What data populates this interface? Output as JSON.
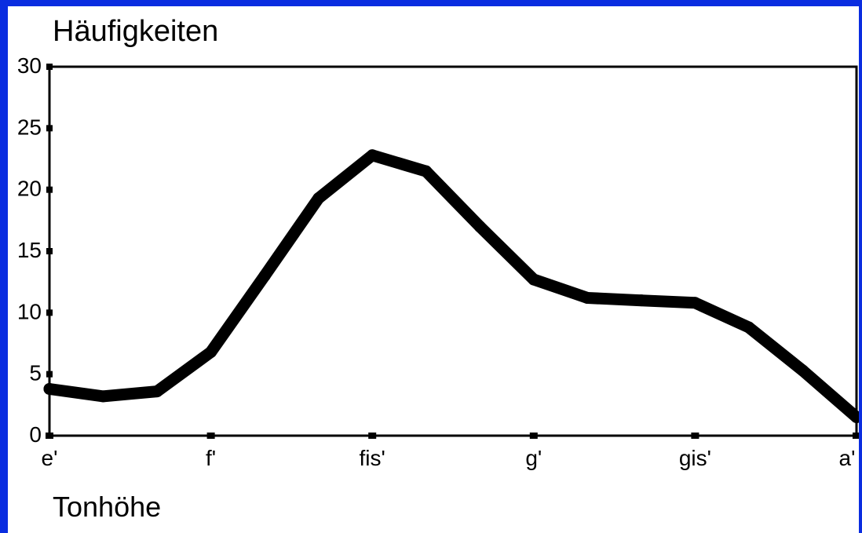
{
  "chart_data": {
    "type": "line",
    "ylabel": "Häufigkeiten",
    "xlabel": "Tonhöhe",
    "ylim": [
      0,
      30
    ],
    "yticks": [
      0,
      5,
      10,
      15,
      20,
      25,
      30
    ],
    "xlim": [
      0,
      15
    ],
    "xticks": [
      {
        "x": 0,
        "label": "e'"
      },
      {
        "x": 3,
        "label": "f'"
      },
      {
        "x": 6,
        "label": "fis'"
      },
      {
        "x": 9,
        "label": "g'"
      },
      {
        "x": 12,
        "label": "gis'"
      },
      {
        "x": 15,
        "label": "a'"
      }
    ],
    "series": [
      {
        "x": [
          0,
          1,
          2,
          3,
          4,
          5,
          6,
          7,
          8,
          9,
          10,
          11,
          12,
          13,
          14,
          15
        ],
        "values": [
          3.8,
          3.2,
          3.6,
          6.8,
          13.0,
          19.3,
          22.8,
          21.5,
          17.0,
          12.7,
          11.2,
          11.0,
          10.8,
          8.8,
          5.3,
          1.5
        ]
      }
    ],
    "grid": false,
    "legend": "none",
    "line_color": "#000000"
  },
  "colors": {
    "background": "#ffffff",
    "frame": "#0a2de0"
  }
}
